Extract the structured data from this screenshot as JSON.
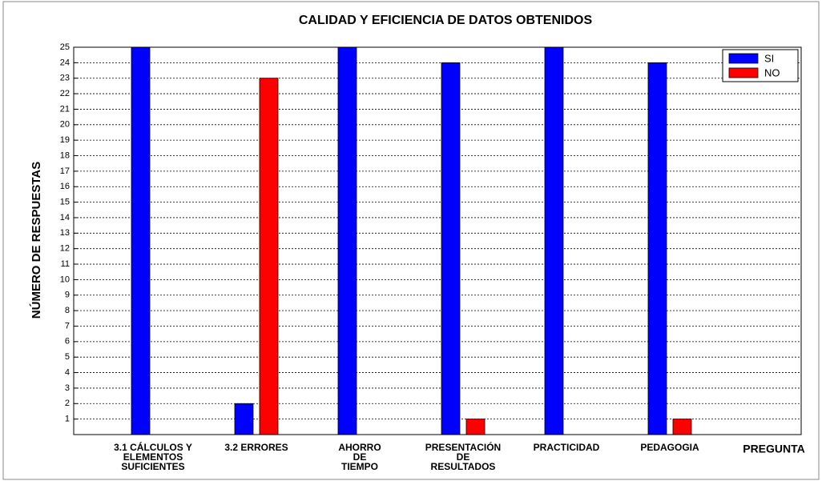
{
  "chart_data": {
    "type": "bar",
    "title": "CALIDAD Y EFICIENCIA DE DATOS OBTENIDOS",
    "y_label": "NÚMERO DE RESPUESTAS",
    "x_label": "PREGUNTA",
    "categories": [
      "3.1 CÁLCULOS Y\nELEMENTOS\nSUFICIENTES",
      "3.2 ERRORES",
      "AHORRO\nDE\nTIEMPO",
      "PRESENTACIÓN\nDE\nRESULTADOS",
      "PRACTICIDAD",
      "PEDAGOGIA"
    ],
    "series": [
      {
        "name": "SI",
        "color": "#0000ff",
        "values": [
          25,
          2,
          25,
          24,
          25,
          24
        ]
      },
      {
        "name": "NO",
        "color": "#ff0000",
        "values": [
          0,
          23,
          0,
          1,
          0,
          1
        ]
      }
    ],
    "ylim": [
      0,
      25
    ],
    "yticks": [
      1,
      2,
      3,
      4,
      5,
      6,
      7,
      8,
      9,
      10,
      11,
      12,
      13,
      14,
      15,
      16,
      17,
      18,
      19,
      20,
      21,
      22,
      23,
      24,
      25
    ],
    "grid": true,
    "legend": "upper right"
  }
}
